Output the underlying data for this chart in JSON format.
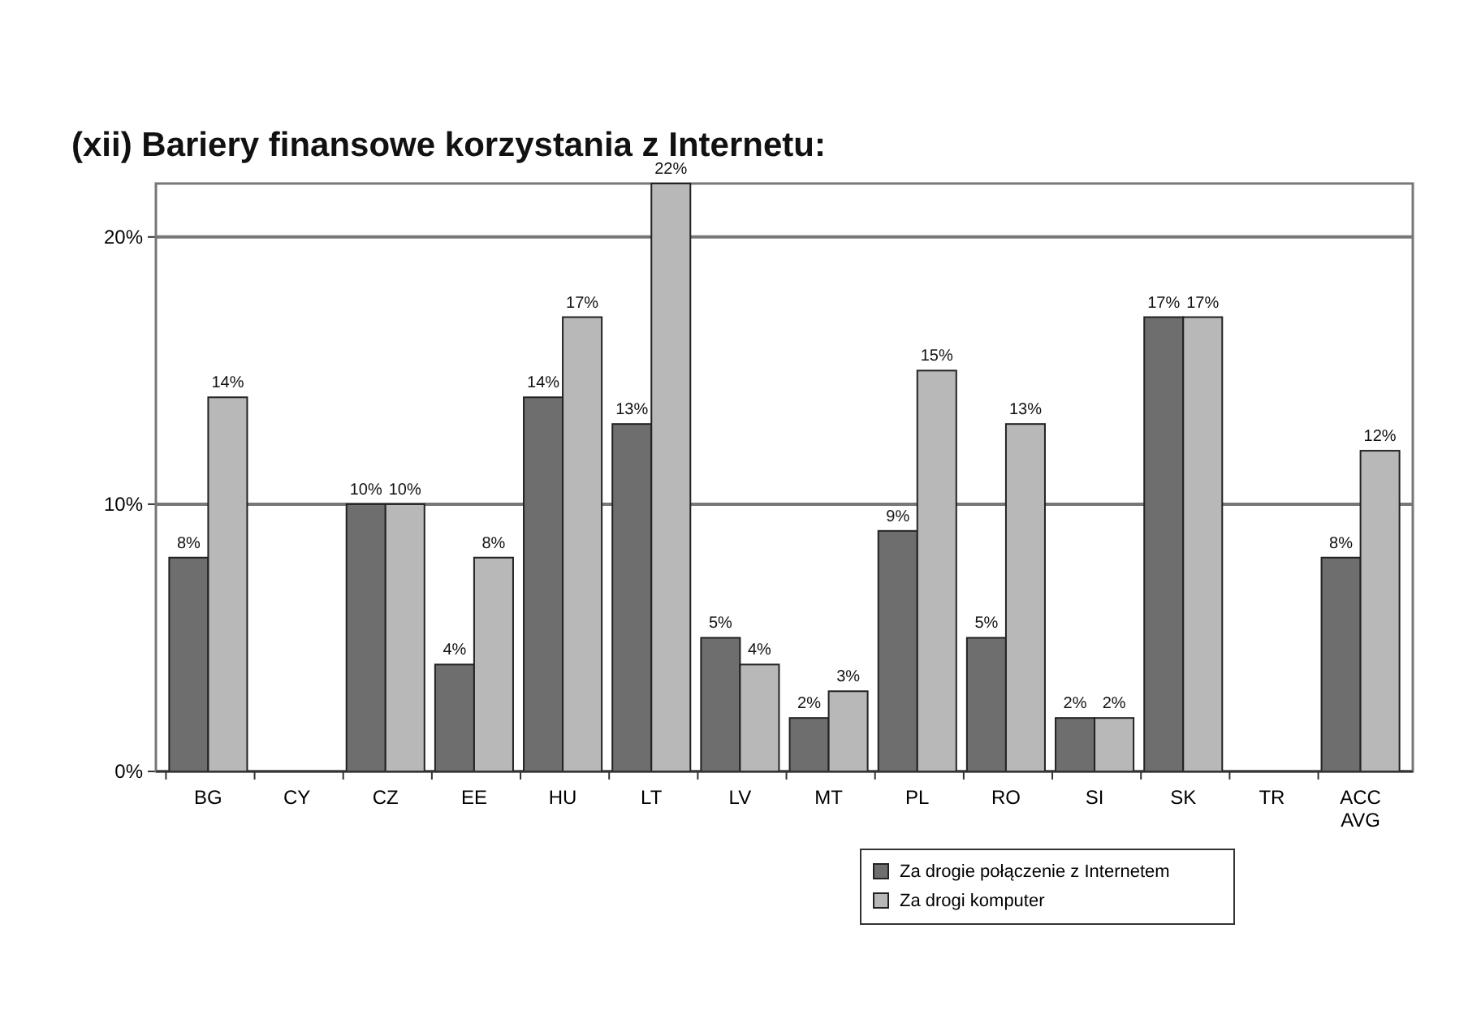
{
  "chart_data": {
    "type": "bar",
    "title": "(xii) Bariery finansowe korzystania z Internetu:",
    "categories": [
      "BG",
      "CY",
      "CZ",
      "EE",
      "HU",
      "LT",
      "LV",
      "MT",
      "PL",
      "RO",
      "SI",
      "SK",
      "TR",
      "ACC AVG"
    ],
    "series": [
      {
        "name": "Za drogie połączenie z Internetem",
        "color": "#6e6e6e",
        "values": [
          8,
          null,
          10,
          4,
          14,
          13,
          5,
          2,
          9,
          5,
          2,
          17,
          null,
          8
        ],
        "value_labels": [
          "8%",
          null,
          "10%",
          "4%",
          "14%",
          "13%",
          "5%",
          "2%",
          "9%",
          "5%",
          "2%",
          "17%",
          null,
          "8%"
        ]
      },
      {
        "name": "Za drogi komputer",
        "color": "#b8b8b8",
        "values": [
          14,
          null,
          10,
          8,
          17,
          22,
          4,
          3,
          15,
          13,
          2,
          17,
          null,
          12
        ],
        "value_labels": [
          "14%",
          null,
          "10%",
          "8%",
          "17%",
          "22%",
          "4%",
          "3%",
          "15%",
          "13%",
          "2%",
          "17%",
          null,
          "12%"
        ]
      }
    ],
    "ylim": [
      0,
      22
    ],
    "yticks": [
      {
        "value": 0,
        "label": "0%"
      },
      {
        "value": 10,
        "label": "10%"
      },
      {
        "value": 20,
        "label": "20%"
      }
    ],
    "grid": "y",
    "legend": "bottom right"
  }
}
